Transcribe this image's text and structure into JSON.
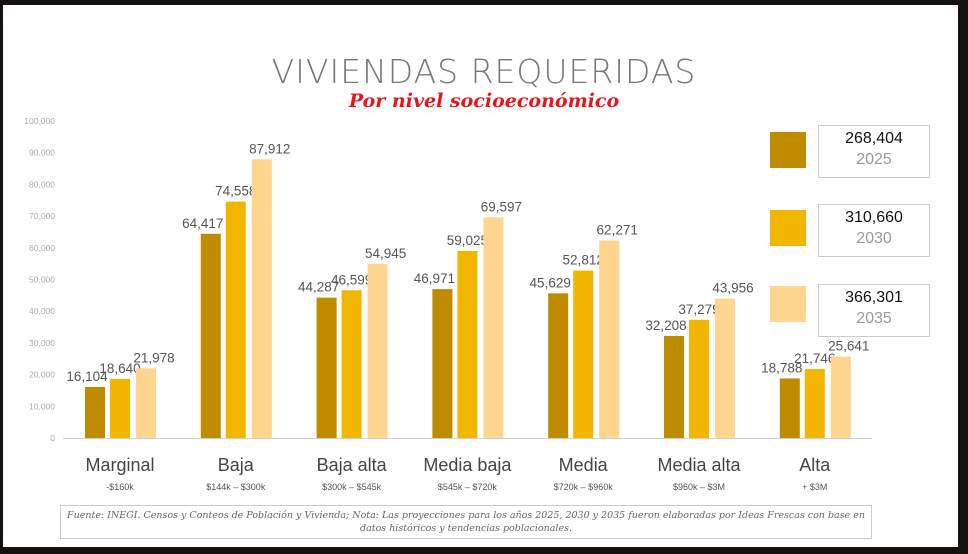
{
  "title": "VIVIENDAS REQUERIDAS",
  "subtitle": "Por nivel socioeconómico",
  "chart_data": {
    "type": "bar",
    "title": "VIVIENDAS REQUERIDAS",
    "subtitle": "Por nivel socioeconómico",
    "categories": [
      "Marginal",
      "Baja",
      "Baja alta",
      "Media baja",
      "Media",
      "Media alta",
      "Alta"
    ],
    "category_sublabels": [
      "-$160k",
      "$144k – $300k",
      "$300k – $545k",
      "$545k – $720k",
      "$720k – $960k",
      "$960k – $3M",
      "+ $3M"
    ],
    "series": [
      {
        "name": "2025",
        "color": "#BF8C00",
        "values": [
          16104,
          64417,
          44287,
          46971,
          45629,
          32208,
          18788
        ],
        "labels": [
          "16,104",
          "64,417",
          "44,287",
          "46,971",
          "45,629",
          "32,208",
          "18,788"
        ]
      },
      {
        "name": "2030",
        "color": "#F2B600",
        "values": [
          18640,
          74558,
          46599,
          59025,
          52812,
          37279,
          21746
        ],
        "labels": [
          "18,640",
          "74,558",
          "46,599",
          "59,025",
          "52,812",
          "37,279",
          "21,746"
        ]
      },
      {
        "name": "2035",
        "color": "#FFD590",
        "values": [
          21978,
          87912,
          54945,
          69597,
          62271,
          43956,
          25641
        ],
        "labels": [
          "21,978",
          "87,912",
          "54,945",
          "69,597",
          "62,271",
          "43,956",
          "25,641"
        ]
      }
    ],
    "ylim": [
      0,
      100000
    ],
    "yticks": [
      "0",
      "10,000",
      "20,000",
      "30,000",
      "40,000",
      "50,000",
      "60,000",
      "70,000",
      "80,000",
      "90,000",
      "100,000"
    ],
    "grid": false,
    "legend": {
      "placement": "right",
      "items": [
        {
          "year": "2025",
          "total": "268,404",
          "color": "#BF8C00"
        },
        {
          "year": "2030",
          "total": "310,660",
          "color": "#F2B600"
        },
        {
          "year": "2035",
          "total": "366,301",
          "color": "#FFD590"
        }
      ]
    }
  },
  "footnote": "Fuente: INEGI. Censos y Conteos de Población y Vivienda; Nota: Las proyecciones para los años 2025, 2030 y 2035 fueron elaboradas por Ideas Frescas con base en datos históricos y tendencias poblacionales."
}
